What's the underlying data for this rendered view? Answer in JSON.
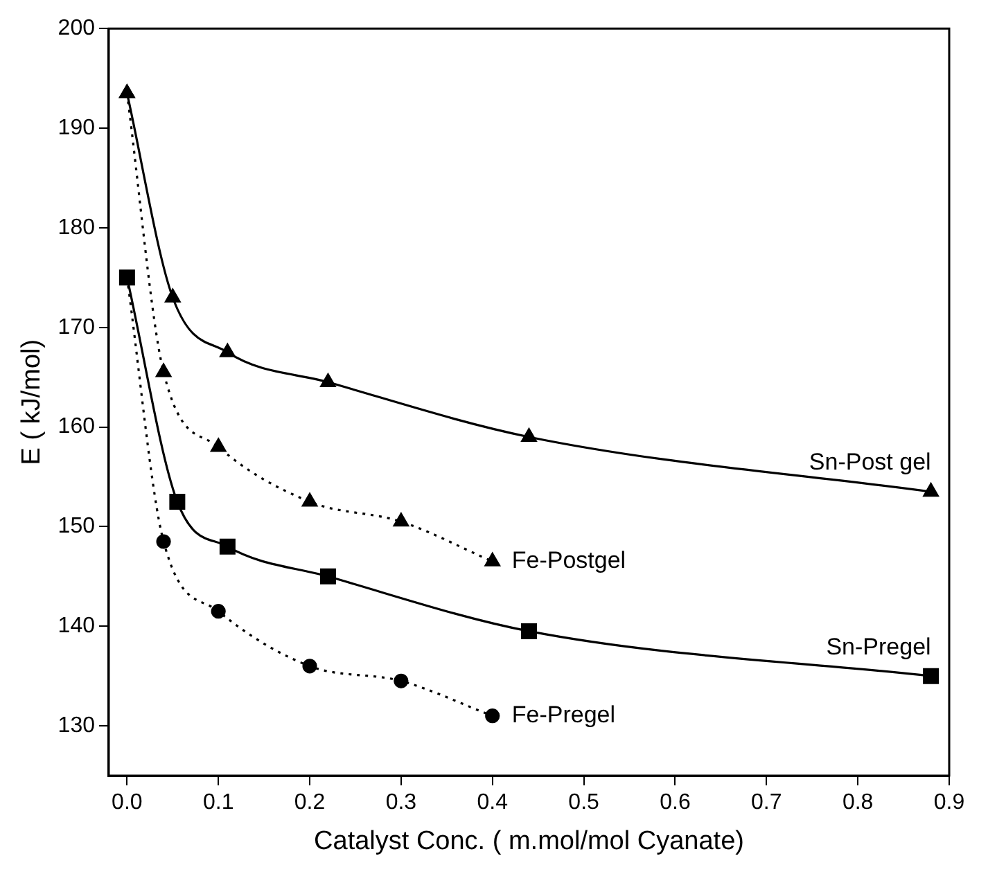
{
  "chart_data": {
    "type": "line",
    "xlabel": "Catalyst Conc. ( m.mol/mol Cyanate)",
    "ylabel": "E ( kJ/mol)",
    "xlim": [
      -0.02,
      0.9
    ],
    "xticks": [
      {
        "value": 0,
        "label": "0.0"
      },
      0.1,
      0.2,
      0.3,
      0.4,
      0.5,
      0.6,
      0.7,
      0.8,
      0.9
    ],
    "ylim": [
      125,
      200
    ],
    "yticks": [
      130,
      140,
      150,
      160,
      170,
      180,
      190,
      200
    ],
    "grid": false,
    "legend": false,
    "series": [
      {
        "name": "Sn-Post gel",
        "color": "#000000",
        "marker": "triangle",
        "line_style": "solid",
        "x": [
          0,
          0.05,
          0.11,
          0.22,
          0.44,
          0.88
        ],
        "values": [
          193.5,
          173,
          167.5,
          164.5,
          159,
          153.5
        ]
      },
      {
        "name": "Fe-Postgel",
        "color": "#000000",
        "marker": "triangle",
        "line_style": "dotted",
        "x": [
          0,
          0.04,
          0.1,
          0.2,
          0.3,
          0.4
        ],
        "values": [
          193.5,
          165.5,
          158,
          152.5,
          150.5,
          146.5
        ]
      },
      {
        "name": "Sn-Pregel",
        "color": "#000000",
        "marker": "square",
        "line_style": "solid",
        "x": [
          0,
          0.055,
          0.11,
          0.22,
          0.44,
          0.88
        ],
        "values": [
          175,
          152.5,
          148,
          145,
          139.5,
          135
        ]
      },
      {
        "name": "Fe-Pregel",
        "color": "#000000",
        "marker": "circle",
        "line_style": "dotted",
        "x": [
          0,
          0.04,
          0.1,
          0.2,
          0.3,
          0.4
        ],
        "values": [
          175,
          148.5,
          141.5,
          136,
          134.5,
          131
        ]
      }
    ]
  }
}
